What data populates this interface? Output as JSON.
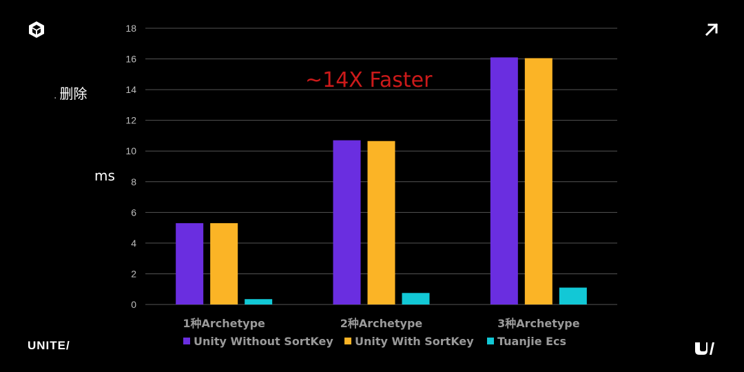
{
  "side_label": "删除",
  "unit_label": "ms",
  "annotation": "~14X Faster",
  "brand": {
    "unite_text": "UNITE/"
  },
  "icons": {
    "top_left": "unity-cube-icon",
    "top_right": "arrow-up-right-icon",
    "bottom_right": "unity-u-logo-icon"
  },
  "chart_data": {
    "type": "bar",
    "categories": [
      "1种Archetype",
      "2种Archetype",
      "3种Archetype"
    ],
    "series": [
      {
        "name": "Unity Without SortKey",
        "color": "#6a2ee0",
        "values": [
          5.3,
          10.7,
          16.1
        ]
      },
      {
        "name": "Unity With SortKey",
        "color": "#fbb426",
        "values": [
          5.3,
          10.65,
          16.05
        ]
      },
      {
        "name": "Tuanjie Ecs",
        "color": "#12c8d6",
        "values": [
          0.35,
          0.75,
          1.1
        ]
      }
    ],
    "ylim": [
      0,
      18
    ],
    "yticks": [
      0,
      2,
      4,
      6,
      8,
      10,
      12,
      14,
      16,
      18
    ],
    "grid": true,
    "legend": "bottom"
  }
}
